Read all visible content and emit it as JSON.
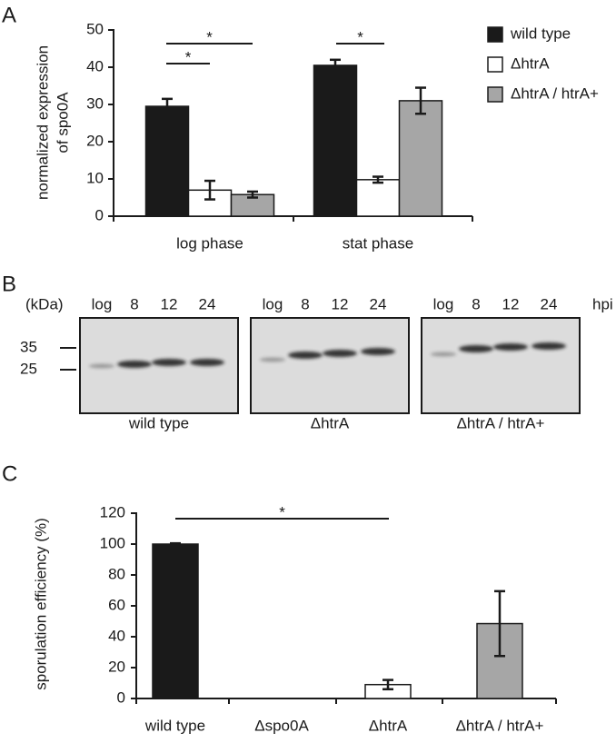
{
  "panel_labels": [
    "A",
    "B",
    "C"
  ],
  "chart_data": [
    {
      "type": "bar",
      "y_label": [
        "normalized expression",
        "of spo0A"
      ],
      "categories": [
        "log phase",
        "stat phase"
      ],
      "series": [
        {
          "name": "wild type",
          "color": "#1a1a1a",
          "values": [
            29.5,
            40.5
          ],
          "errors": [
            2,
            1.5
          ]
        },
        {
          "name": "ΔhtrA",
          "color": "#ffffff",
          "values": [
            7,
            9.8
          ],
          "errors": [
            2.5,
            0.8
          ]
        },
        {
          "name": "ΔhtrA / htrA+",
          "color": "#a6a6a6",
          "values": [
            5.8,
            31
          ],
          "errors": [
            0.8,
            3.5
          ]
        }
      ],
      "ylim": [
        0,
        50
      ],
      "yticks": [
        0,
        10,
        20,
        30,
        40,
        50
      ],
      "annotations": [
        "*",
        "*",
        "*"
      ],
      "legend": "upper right"
    },
    {
      "type": "bar",
      "y_label": [
        "sporulation efficiency (%)"
      ],
      "categories": [
        "wild type",
        "Δspo0A",
        "ΔhtrA",
        "ΔhtrA / htrA+"
      ],
      "values": [
        100,
        0,
        9,
        48.5
      ],
      "errors": [
        0.5,
        0,
        3,
        21
      ],
      "colors": [
        "#1a1a1a",
        "#ffffff",
        "#ffffff",
        "#a6a6a6"
      ],
      "ylim": [
        0,
        120
      ],
      "yticks": [
        0,
        20,
        40,
        60,
        80,
        100,
        120
      ],
      "annotations": [
        "*"
      ]
    }
  ],
  "blot": {
    "size_unit": "(kDa)",
    "markers": [
      "35",
      "25"
    ],
    "time_unit": "hpi",
    "panels": [
      {
        "strain": "wild type",
        "lanes": [
          "log",
          "8",
          "12",
          "24"
        ]
      },
      {
        "strain": "ΔhtrA",
        "lanes": [
          "log",
          "8",
          "12",
          "24"
        ]
      },
      {
        "strain": "ΔhtrA / htrA+",
        "lanes": [
          "log",
          "8",
          "12",
          "24"
        ]
      }
    ]
  }
}
